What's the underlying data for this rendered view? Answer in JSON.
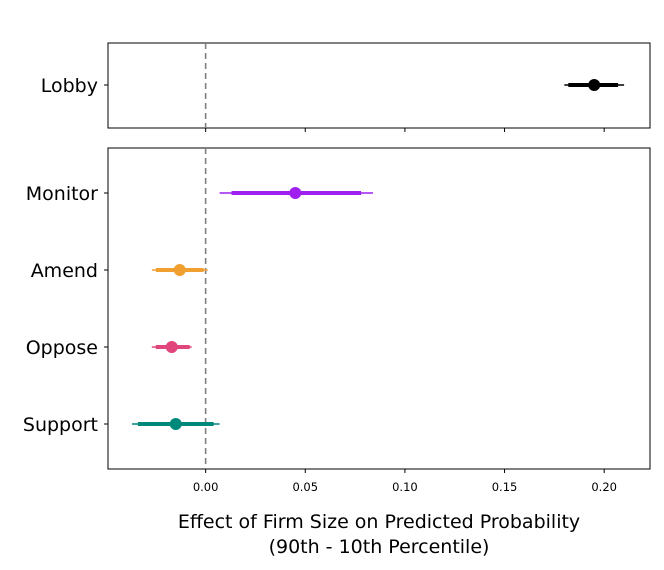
{
  "chart_data": {
    "type": "scatter",
    "subtype": "coefficient-plot",
    "xlabel_line1": "Effect of Firm Size on Predicted Probability",
    "xlabel_line2": "(90th - 10th Percentile)",
    "xlim": [
      -0.049,
      0.223
    ],
    "xticks": [
      0.0,
      0.05,
      0.1,
      0.15,
      0.2
    ],
    "xtick_labels": [
      "0.00",
      "0.05",
      "0.10",
      "0.15",
      "0.20"
    ],
    "reference_line": 0,
    "panels": [
      {
        "name": "top",
        "series": [
          {
            "label": "Lobby",
            "estimate": 0.195,
            "ci90": [
              0.182,
              0.207
            ],
            "ci95": [
              0.18,
              0.21
            ],
            "color": "#000000"
          }
        ]
      },
      {
        "name": "bottom",
        "series": [
          {
            "label": "Monitor",
            "estimate": 0.045,
            "ci90": [
              0.013,
              0.078
            ],
            "ci95": [
              0.007,
              0.084
            ],
            "color": "#a020f0"
          },
          {
            "label": "Amend",
            "estimate": -0.013,
            "ci90": [
              -0.025,
              -0.001
            ],
            "ci95": [
              -0.027,
              0.001
            ],
            "color": "#f0a030"
          },
          {
            "label": "Oppose",
            "estimate": -0.017,
            "ci90": [
              -0.025,
              -0.008
            ],
            "ci95": [
              -0.027,
              -0.007
            ],
            "color": "#e0457b"
          },
          {
            "label": "Support",
            "estimate": -0.015,
            "ci90": [
              -0.034,
              0.004
            ],
            "ci95": [
              -0.037,
              0.007
            ],
            "color": "#00897b"
          }
        ]
      }
    ]
  }
}
